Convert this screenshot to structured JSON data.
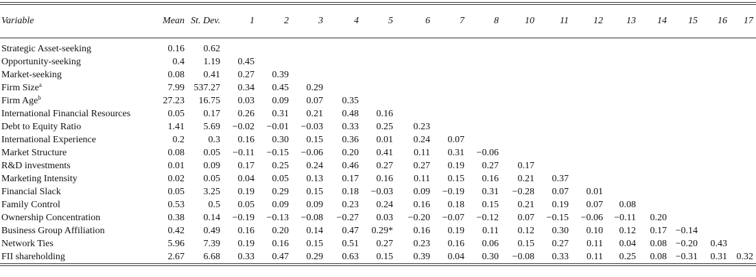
{
  "table": {
    "header": [
      "Variable",
      "Mean",
      "St. Dev.",
      "1",
      "2",
      "3",
      "4",
      "5",
      "6",
      "7",
      "8",
      "10",
      "11",
      "12",
      "13",
      "14",
      "15",
      "16",
      "17"
    ],
    "rows": [
      {
        "label": "Strategic Asset-seeking",
        "cells": [
          "0.16",
          "0.62"
        ]
      },
      {
        "label": "Opportunity-seeking",
        "cells": [
          "0.4",
          "1.19",
          "0.45"
        ]
      },
      {
        "label": "Market-seeking",
        "cells": [
          "0.08",
          "0.41",
          "0.27",
          "0.39"
        ]
      },
      {
        "label": "Firm Size",
        "sup": "a",
        "cells": [
          "7.99",
          "537.27",
          "0.34",
          "0.45",
          "0.29"
        ]
      },
      {
        "label": "Firm Age",
        "sup": "b",
        "cells": [
          "27.23",
          "16.75",
          "0.03",
          "0.09",
          "0.07",
          "0.35"
        ]
      },
      {
        "label": "International Financial Resources",
        "cells": [
          "0.05",
          "0.17",
          "0.26",
          "0.31",
          "0.21",
          "0.48",
          "0.16"
        ]
      },
      {
        "label": "Debt to Equity Ratio",
        "cells": [
          "1.41",
          "5.69",
          "−0.02",
          "−0.01",
          "−0.03",
          "0.33",
          "0.25",
          "0.23"
        ]
      },
      {
        "label": "International Experience",
        "cells": [
          "0.2",
          "0.3",
          "0.16",
          "0.30",
          "0.15",
          "0.36",
          "0.01",
          "0.24",
          "0.07"
        ]
      },
      {
        "label": "Market Structure",
        "cells": [
          "0.08",
          "0.05",
          "−0.11",
          "−0.15",
          "−0.06",
          "0.20",
          "0.41",
          "0.11",
          "0.31",
          "−0.06"
        ]
      },
      {
        "label": "R&D investments",
        "cells": [
          "0.01",
          "0.09",
          "0.17",
          "0.25",
          "0.24",
          "0.46",
          "0.27",
          "0.27",
          "0.19",
          "0.27",
          "0.17"
        ]
      },
      {
        "label": "Marketing Intensity",
        "cells": [
          "0.02",
          "0.05",
          "0.04",
          "0.05",
          "0.13",
          "0.17",
          "0.16",
          "0.11",
          "0.15",
          "0.16",
          "0.21",
          "0.37"
        ]
      },
      {
        "label": "Financial Slack",
        "cells": [
          "0.05",
          "3.25",
          "0.19",
          "0.29",
          "0.15",
          "0.18",
          "−0.03",
          "0.09",
          "−0.19",
          "0.31",
          "−0.28",
          "0.07",
          "0.01"
        ]
      },
      {
        "label": "Family Control",
        "cells": [
          "0.53",
          "0.5",
          "0.05",
          "0.09",
          "0.09",
          "0.23",
          "0.24",
          "0.16",
          "0.18",
          "0.15",
          "0.21",
          "0.19",
          "0.07",
          "0.08"
        ]
      },
      {
        "label": "Ownership Concentration",
        "cells": [
          "0.38",
          "0.14",
          "−0.19",
          "−0.13",
          "−0.08",
          "−0.27",
          "0.03",
          "−0.20",
          "−0.07",
          "−0.12",
          "0.07",
          "−0.15",
          "−0.06",
          "−0.11",
          "0.20"
        ]
      },
      {
        "label": "Business Group Affiliation",
        "cells": [
          "0.42",
          "0.49",
          "0.16",
          "0.20",
          "0.14",
          "0.47",
          "0.29*",
          "0.16",
          "0.19",
          "0.11",
          "0.12",
          "0.30",
          "0.10",
          "0.12",
          "0.17",
          "−0.14"
        ]
      },
      {
        "label": "Network Ties",
        "cells": [
          "5.96",
          "7.39",
          "0.19",
          "0.16",
          "0.15",
          "0.51",
          "0.27",
          "0.23",
          "0.16",
          "0.06",
          "0.15",
          "0.27",
          "0.11",
          "0.04",
          "0.08",
          "−0.20",
          "0.43"
        ]
      },
      {
        "label": "FII shareholding",
        "cells": [
          "2.67",
          "6.68",
          "0.33",
          "0.47",
          "0.29",
          "0.63",
          "0.15",
          "0.39",
          "0.04",
          "0.30",
          "−0.08",
          "0.33",
          "0.11",
          "0.25",
          "0.08",
          "−0.31",
          "0.31",
          "0.32"
        ]
      }
    ]
  }
}
